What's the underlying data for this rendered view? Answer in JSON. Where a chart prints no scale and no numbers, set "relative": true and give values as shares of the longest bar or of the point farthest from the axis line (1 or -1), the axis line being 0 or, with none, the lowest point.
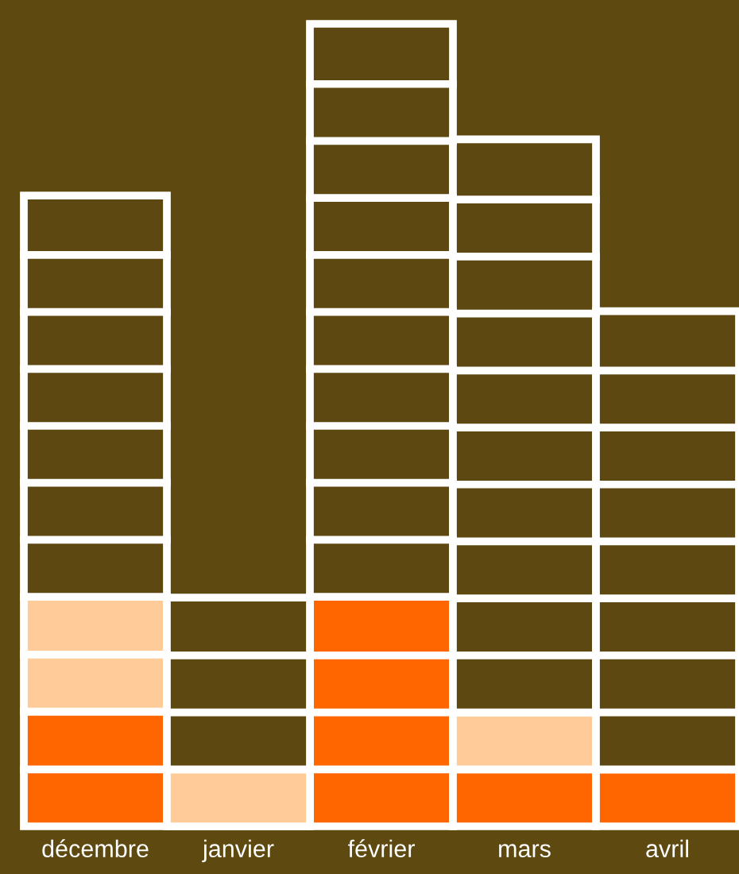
{
  "chart_data": {
    "type": "bar",
    "stacked": true,
    "relative": true,
    "tick_labels": "x",
    "grid": false,
    "legend": false,
    "categories": [
      "décembre",
      "janvier",
      "février",
      "mars",
      "avril"
    ],
    "series": [
      {
        "color": "#ff6600",
        "values": [
          0.143,
          0,
          0.286,
          0.071,
          0.071
        ]
      },
      {
        "color": "#ffcc99",
        "values": [
          0.143,
          0.071,
          0,
          0.071,
          0
        ]
      },
      {
        "color": "#5c4810",
        "values": [
          0.5,
          0.214,
          0.714,
          0.714,
          0.571
        ]
      }
    ]
  }
}
